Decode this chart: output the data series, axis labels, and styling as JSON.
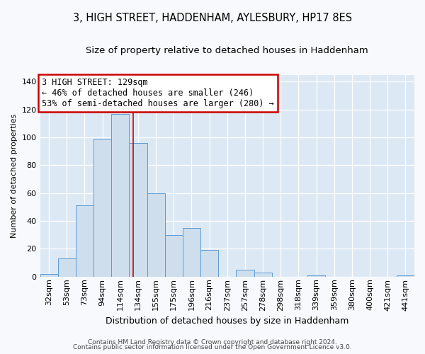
{
  "title": "3, HIGH STREET, HADDENHAM, AYLESBURY, HP17 8ES",
  "subtitle": "Size of property relative to detached houses in Haddenham",
  "xlabel": "Distribution of detached houses by size in Haddenham",
  "ylabel": "Number of detached properties",
  "bar_labels": [
    "32sqm",
    "53sqm",
    "73sqm",
    "94sqm",
    "114sqm",
    "134sqm",
    "155sqm",
    "175sqm",
    "196sqm",
    "216sqm",
    "237sqm",
    "257sqm",
    "278sqm",
    "298sqm",
    "318sqm",
    "339sqm",
    "359sqm",
    "380sqm",
    "400sqm",
    "421sqm",
    "441sqm"
  ],
  "bar_values": [
    2,
    13,
    51,
    99,
    117,
    96,
    60,
    30,
    35,
    19,
    0,
    5,
    3,
    0,
    0,
    1,
    0,
    0,
    0,
    0,
    1
  ],
  "bar_color": "#cfdeed",
  "bar_edge_color": "#5b9bd5",
  "vline_position": 4.72,
  "vline_color": "#cc0000",
  "ylim": [
    0,
    145
  ],
  "yticks": [
    0,
    20,
    40,
    60,
    80,
    100,
    120,
    140
  ],
  "annotation_text": "3 HIGH STREET: 129sqm\n← 46% of detached houses are smaller (246)\n53% of semi-detached houses are larger (280) →",
  "annotation_box_facecolor": "#ffffff",
  "annotation_box_edgecolor": "#cc0000",
  "footer_line1": "Contains HM Land Registry data © Crown copyright and database right 2024.",
  "footer_line2": "Contains public sector information licensed under the Open Government Licence v3.0.",
  "plot_bg_color": "#dce9f5",
  "fig_bg_color": "#f7f9fc",
  "title_fontsize": 10.5,
  "subtitle_fontsize": 9.5,
  "ylabel_fontsize": 8,
  "xlabel_fontsize": 9,
  "tick_fontsize": 8,
  "annotation_fontsize": 8.5,
  "footer_fontsize": 6.5
}
